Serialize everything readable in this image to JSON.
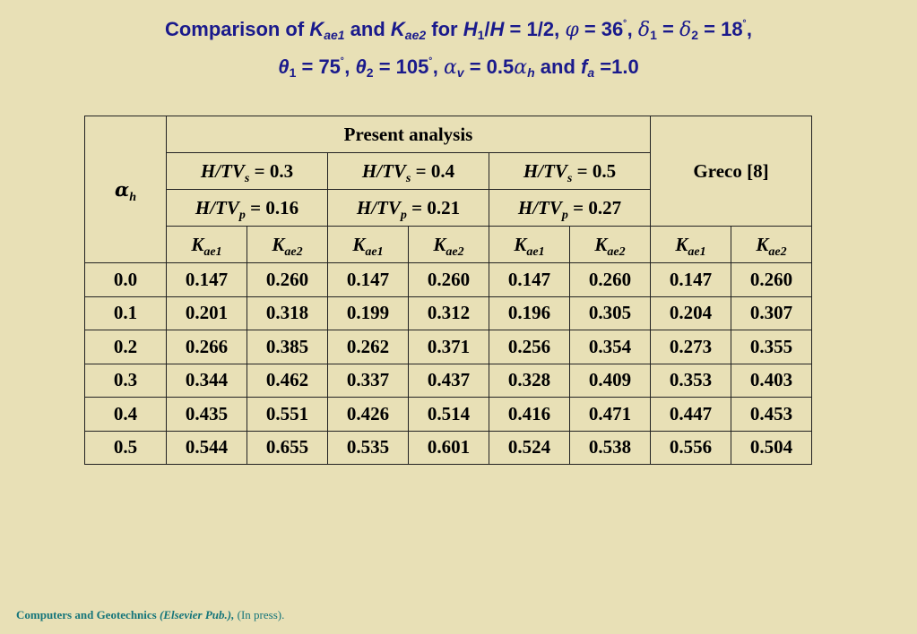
{
  "title": {
    "line1": {
      "t1": "Comparison of ",
      "k1": "K",
      "k1_sub": "ae1",
      "t2": " and ",
      "k2": "K",
      "k2_sub": "ae2",
      "t3": " for ",
      "h": "H",
      "h_sub": "1",
      "t4": "/",
      "h2": "H",
      "t5": " = 1/2, ",
      "phi": "φ",
      "t6": " = 36",
      "deg1": "˚",
      "t7": ", ",
      "d1": "δ",
      "d1_sub": "1",
      "t8": " = ",
      "d2": "δ",
      "d2_sub": "2",
      "t9": " = 18",
      "deg2": "˚",
      "t10": ","
    },
    "line2": {
      "th1": "θ",
      "th1_sub": "1",
      "t1": " = 75",
      "deg1": "˚",
      "t2": ", ",
      "th2": "θ",
      "th2_sub": "2",
      "t3": " = 105",
      "deg2": "˚",
      "t4": ", ",
      "av": "α",
      "av_sub": "v",
      "t5": " = 0.5",
      "ah": "α",
      "ah_sub": "h",
      "t6": " and ",
      "f": "f",
      "f_sub": "a",
      "t7": " =1.0"
    }
  },
  "table": {
    "alpha_h": {
      "sym": "α",
      "sub": "h"
    },
    "present_analysis": "Present analysis",
    "greco": "Greco [8]",
    "tvs": [
      {
        "pre": "H/TV",
        "sub": "s",
        "post": " = 0.3"
      },
      {
        "pre": "H/TV",
        "sub": "s",
        "post": " = 0.4"
      },
      {
        "pre": "H/TV",
        "sub": "s",
        "post": " = 0.5"
      }
    ],
    "tvp": [
      {
        "pre": "H/TV",
        "sub": "p",
        "post": " = 0.16"
      },
      {
        "pre": "H/TV",
        "sub": "p",
        "post": " = 0.21"
      },
      {
        "pre": "H/TV",
        "sub": "p",
        "post": " = 0.27"
      }
    ],
    "k_headers": [
      {
        "k": "K",
        "sub": "ae1"
      },
      {
        "k": "K",
        "sub": "ae2"
      },
      {
        "k": "K",
        "sub": "ae1"
      },
      {
        "k": "K",
        "sub": "ae2"
      },
      {
        "k": "K",
        "sub": "ae1"
      },
      {
        "k": "K",
        "sub": "ae2"
      },
      {
        "k": "K",
        "sub": "ae1"
      },
      {
        "k": "K",
        "sub": "ae2"
      }
    ],
    "rows": [
      [
        "0.0",
        "0.147",
        "0.260",
        "0.147",
        "0.260",
        "0.147",
        "0.260",
        "0.147",
        "0.260"
      ],
      [
        "0.1",
        "0.201",
        "0.318",
        "0.199",
        "0.312",
        "0.196",
        "0.305",
        "0.204",
        "0.307"
      ],
      [
        "0.2",
        "0.266",
        "0.385",
        "0.262",
        "0.371",
        "0.256",
        "0.354",
        "0.273",
        "0.355"
      ],
      [
        "0.3",
        "0.344",
        "0.462",
        "0.337",
        "0.437",
        "0.328",
        "0.409",
        "0.353",
        "0.403"
      ],
      [
        "0.4",
        "0.435",
        "0.551",
        "0.426",
        "0.514",
        "0.416",
        "0.471",
        "0.447",
        "0.453"
      ],
      [
        "0.5",
        "0.544",
        "0.655",
        "0.535",
        "0.601",
        "0.524",
        "0.538",
        "0.556",
        "0.504"
      ]
    ]
  },
  "footer": {
    "journal": "Computers and Geotechnics ",
    "publisher": "(Elsevier Pub.),",
    "status": " (In press)."
  }
}
